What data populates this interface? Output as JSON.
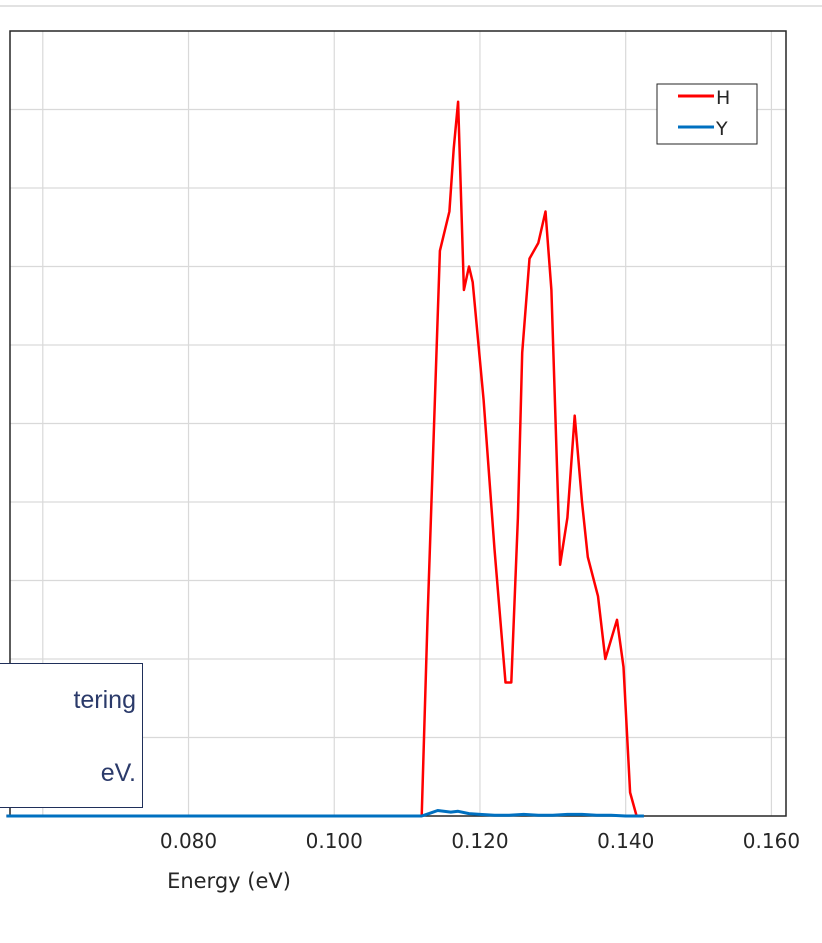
{
  "chart_data": {
    "type": "line",
    "xlabel": "Energy (eV)",
    "ylabel": "",
    "xlim": [
      0.0555,
      0.162
    ],
    "ylim": [
      0,
      10
    ],
    "grid": true,
    "legend_placement": "top-right",
    "x_tick_labels": [
      "0.080",
      "0.100",
      "0.120",
      "0.140",
      "0.160"
    ],
    "x_tick_values": [
      0.08,
      0.1,
      0.12,
      0.14,
      0.16
    ],
    "series": [
      {
        "name": "H",
        "color": "#ff0000",
        "x": [
          0.055,
          0.112,
          0.1128,
          0.1145,
          0.1158,
          0.1164,
          0.117,
          0.1178,
          0.1185,
          0.119,
          0.1205,
          0.122,
          0.1235,
          0.1243,
          0.1252,
          0.1258,
          0.1268,
          0.128,
          0.129,
          0.1298,
          0.131,
          0.132,
          0.133,
          0.134,
          0.1348,
          0.1362,
          0.1372,
          0.1388,
          0.1397,
          0.1406,
          0.1415
        ],
        "y": [
          0,
          0,
          2.5,
          7.2,
          7.7,
          8.5,
          9.1,
          6.7,
          7.0,
          6.8,
          5.3,
          3.4,
          1.7,
          1.7,
          3.8,
          5.9,
          7.1,
          7.3,
          7.7,
          6.7,
          3.2,
          3.8,
          5.1,
          4.0,
          3.3,
          2.8,
          2.0,
          2.5,
          1.9,
          0.3,
          0
        ]
      },
      {
        "name": "Y",
        "color": "#0070c0",
        "x": [
          0.055,
          0.112,
          0.113,
          0.1142,
          0.116,
          0.117,
          0.1185,
          0.12,
          0.122,
          0.124,
          0.126,
          0.128,
          0.13,
          0.132,
          0.134,
          0.136,
          0.138,
          0.14,
          0.1425
        ],
        "y": [
          0,
          0,
          0.03,
          0.07,
          0.05,
          0.06,
          0.03,
          0.02,
          0.01,
          0.01,
          0.02,
          0.01,
          0.01,
          0.02,
          0.02,
          0.01,
          0.01,
          0.0,
          0
        ]
      }
    ]
  },
  "callout": {
    "line1": "tering",
    "line2": "eV."
  }
}
